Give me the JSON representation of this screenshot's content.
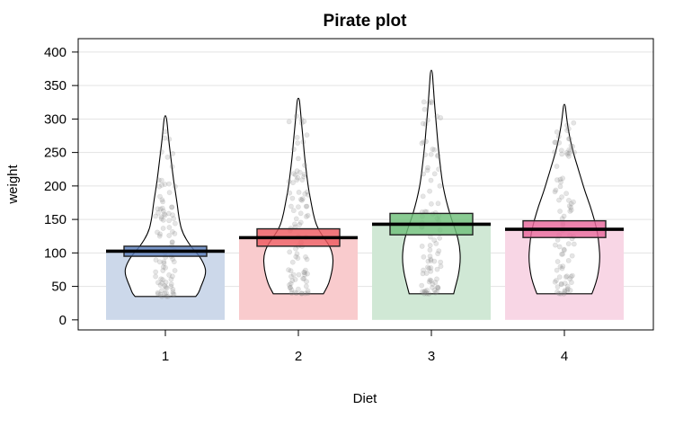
{
  "chart_data": {
    "type": "pirate",
    "title": "Pirate plot",
    "xlabel": "Diet",
    "ylabel": "weight",
    "ylim": [
      -15,
      420
    ],
    "yticks": [
      0,
      50,
      100,
      150,
      200,
      250,
      300,
      350,
      400
    ],
    "grid": true,
    "groups": [
      {
        "name": "1",
        "mean": 102.6,
        "ci": [
          95,
          110
        ],
        "min": 35,
        "max": 305,
        "bar_color": "#ccd8ea",
        "box_color": "#5b7fbd",
        "density": [
          [
            35,
            0.75
          ],
          [
            40,
            0.82
          ],
          [
            50,
            0.88
          ],
          [
            60,
            0.95
          ],
          [
            70,
            1.0
          ],
          [
            80,
            0.98
          ],
          [
            95,
            0.85
          ],
          [
            110,
            0.62
          ],
          [
            130,
            0.42
          ],
          [
            150,
            0.34
          ],
          [
            170,
            0.3
          ],
          [
            190,
            0.25
          ],
          [
            210,
            0.2
          ],
          [
            230,
            0.16
          ],
          [
            250,
            0.12
          ],
          [
            270,
            0.08
          ],
          [
            290,
            0.05
          ],
          [
            305,
            0.02
          ]
        ]
      },
      {
        "name": "2",
        "mean": 122.8,
        "ci": [
          110,
          136
        ],
        "min": 39,
        "max": 331,
        "bar_color": "#f9cbcd",
        "box_color": "#ee5a60",
        "density": [
          [
            39,
            0.62
          ],
          [
            50,
            0.72
          ],
          [
            60,
            0.78
          ],
          [
            70,
            0.82
          ],
          [
            80,
            0.85
          ],
          [
            95,
            0.86
          ],
          [
            110,
            0.78
          ],
          [
            125,
            0.6
          ],
          [
            140,
            0.45
          ],
          [
            160,
            0.36
          ],
          [
            180,
            0.3
          ],
          [
            200,
            0.24
          ],
          [
            220,
            0.2
          ],
          [
            240,
            0.16
          ],
          [
            260,
            0.13
          ],
          [
            280,
            0.1
          ],
          [
            300,
            0.07
          ],
          [
            320,
            0.04
          ],
          [
            331,
            0.02
          ]
        ]
      },
      {
        "name": "3",
        "mean": 142.9,
        "ci": [
          127,
          159
        ],
        "min": 39,
        "max": 373,
        "bar_color": "#d0e8d5",
        "box_color": "#6fbf7a",
        "density": [
          [
            39,
            0.55
          ],
          [
            55,
            0.62
          ],
          [
            70,
            0.68
          ],
          [
            90,
            0.72
          ],
          [
            110,
            0.7
          ],
          [
            130,
            0.62
          ],
          [
            150,
            0.5
          ],
          [
            170,
            0.4
          ],
          [
            190,
            0.32
          ],
          [
            210,
            0.26
          ],
          [
            240,
            0.2
          ],
          [
            270,
            0.15
          ],
          [
            300,
            0.11
          ],
          [
            330,
            0.07
          ],
          [
            355,
            0.04
          ],
          [
            373,
            0.02
          ]
        ]
      },
      {
        "name": "4",
        "mean": 135.3,
        "ci": [
          123,
          148
        ],
        "min": 39,
        "max": 322,
        "bar_color": "#f8d6e5",
        "box_color": "#e8689b",
        "density": [
          [
            39,
            0.68
          ],
          [
            55,
            0.78
          ],
          [
            70,
            0.84
          ],
          [
            90,
            0.88
          ],
          [
            110,
            0.86
          ],
          [
            130,
            0.82
          ],
          [
            150,
            0.74
          ],
          [
            170,
            0.64
          ],
          [
            190,
            0.52
          ],
          [
            210,
            0.42
          ],
          [
            230,
            0.32
          ],
          [
            250,
            0.22
          ],
          [
            270,
            0.14
          ],
          [
            290,
            0.08
          ],
          [
            310,
            0.04
          ],
          [
            322,
            0.02
          ]
        ]
      }
    ]
  }
}
